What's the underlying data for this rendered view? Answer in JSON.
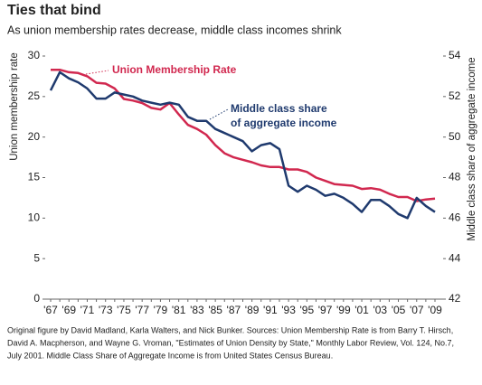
{
  "chart_data": {
    "type": "line",
    "title": "Ties that bind",
    "subtitle": "As union membership rates decrease, middle class incomes shrink",
    "y_label": "Union membership rate",
    "y2_label": "Middle class share of aggregate income",
    "categories": [
      "'67",
      null,
      "'69",
      null,
      "'71",
      null,
      "'73",
      null,
      "'75",
      null,
      "'77",
      null,
      "'79",
      null,
      "'81",
      null,
      "'83",
      null,
      "'85",
      null,
      "'87",
      null,
      "'89",
      null,
      "'91",
      null,
      "'93",
      null,
      "'95",
      null,
      "'97",
      null,
      "'99",
      null,
      "'01",
      null,
      "'03",
      null,
      "'05",
      null,
      "'07",
      null,
      "'09"
    ],
    "series": [
      {
        "name": [
          "Union Membership Rate"
        ],
        "color": "#d1284f",
        "axis": "y",
        "values": [
          28.3,
          28.3,
          28.0,
          27.9,
          27.5,
          26.7,
          26.6,
          26.0,
          24.7,
          24.5,
          24.2,
          23.6,
          23.4,
          24.2,
          22.8,
          21.5,
          21.0,
          20.3,
          19.0,
          18.0,
          17.5,
          17.2,
          16.9,
          16.5,
          16.3,
          16.3,
          16.0,
          16.0,
          15.7,
          15.0,
          14.6,
          14.2,
          14.1,
          14.0,
          13.6,
          13.7,
          13.5,
          13.0,
          12.6,
          12.6,
          12.1,
          12.3,
          12.4
        ]
      },
      {
        "name": [
          "Middle class share",
          "of aggregate income"
        ],
        "color": "#1f3a6e",
        "axis": "y2",
        "values": [
          52.3,
          53.2,
          52.9,
          52.7,
          52.4,
          51.9,
          51.9,
          52.2,
          52.1,
          52.0,
          51.8,
          51.7,
          51.6,
          51.7,
          51.6,
          51.0,
          50.8,
          50.8,
          50.4,
          50.2,
          50.0,
          49.8,
          49.3,
          49.6,
          49.7,
          49.4,
          47.6,
          47.3,
          47.6,
          47.4,
          47.1,
          47.2,
          47.0,
          46.7,
          46.3,
          46.9,
          46.9,
          46.6,
          46.2,
          46.0,
          47.0,
          46.6,
          46.3
        ]
      }
    ],
    "ylim": [
      0,
      30
    ],
    "yticks": [
      0,
      5,
      10,
      15,
      20,
      25,
      30
    ],
    "y2lim": [
      42,
      54
    ],
    "y2ticks": [
      42,
      44,
      46,
      48,
      50,
      52,
      54
    ],
    "grid": false,
    "source": [
      "Original figure by David Madland, Karla Walters, and Nick Bunker. Sources: Union Membership Rate is from Barry T. Hirsch,",
      "David A. Macpherson, and Wayne G. Vroman, \"Estimates of Union Density by State,\" Monthly Labor Review, Vol. 124, No.7,",
      "July 2001. Middle Class Share of Aggregate Income is from United States Census Bureau."
    ]
  }
}
